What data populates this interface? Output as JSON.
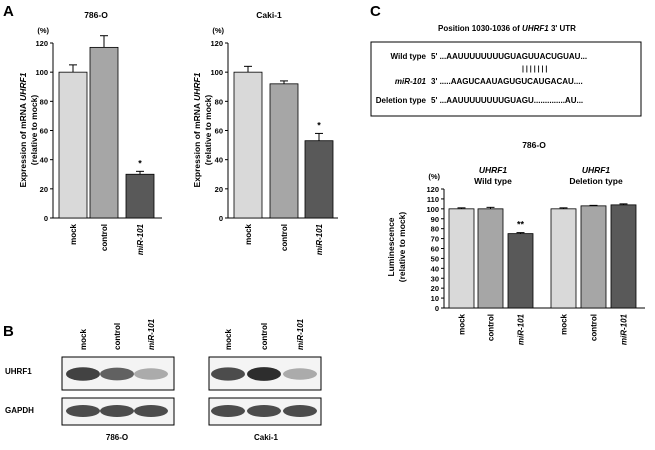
{
  "panel_labels": {
    "A": "A",
    "B": "B",
    "C": "C"
  },
  "chart_data": [
    {
      "type": "bar",
      "title": "786-O",
      "unit": "(%)",
      "ylabel_line1_prefix": "Expression of mRNA ",
      "ylabel_line1_gene": "UHRF1",
      "ylabel_line2": "(relative to mock)",
      "ylim": [
        0,
        120
      ],
      "yticks": [
        "0",
        "20",
        "40",
        "60",
        "80",
        "100",
        "120"
      ],
      "categories": [
        "mock",
        "control",
        "miR-101"
      ],
      "values": [
        100,
        117,
        30
      ],
      "errors": [
        5,
        8,
        2
      ],
      "significance": [
        "",
        "",
        "*"
      ],
      "colors": [
        "#d9d9d9",
        "#a6a6a6",
        "#595959"
      ]
    },
    {
      "type": "bar",
      "title": "Caki-1",
      "unit": "(%)",
      "ylabel_line1_prefix": "Expression of mRNA ",
      "ylabel_line1_gene": "UHRF1",
      "ylabel_line2": "(relative to mock)",
      "ylim": [
        0,
        120
      ],
      "yticks": [
        "0",
        "20",
        "40",
        "60",
        "80",
        "100",
        "120"
      ],
      "categories": [
        "mock",
        "control",
        "miR-101"
      ],
      "values": [
        100,
        92,
        53
      ],
      "errors": [
        4,
        2,
        5
      ],
      "significance": [
        "",
        "",
        "*"
      ],
      "colors": [
        "#d9d9d9",
        "#a6a6a6",
        "#595959"
      ]
    },
    {
      "type": "bar",
      "title": "786-O",
      "unit": "(%)",
      "ylabel_line1": "Luminescence",
      "ylabel_line2": "(relative to mock)",
      "ylim": [
        0,
        120
      ],
      "yticks": [
        "0",
        "10",
        "20",
        "30",
        "40",
        "50",
        "60",
        "70",
        "80",
        "90",
        "100",
        "110",
        "120"
      ],
      "groups": [
        {
          "gene": "UHRF1",
          "label": "Wild type"
        },
        {
          "gene": "UHRF1",
          "label": "Deletion type"
        }
      ],
      "categories": [
        "mock",
        "control",
        "miR-101",
        "mock",
        "control",
        "miR-101"
      ],
      "values": [
        100,
        100,
        75,
        100,
        103,
        104
      ],
      "errors": [
        1,
        1.5,
        1,
        1,
        0.5,
        1
      ],
      "significance": [
        "",
        "",
        "**",
        "",
        "",
        ""
      ],
      "colors": [
        "#d9d9d9",
        "#a6a6a6",
        "#595959",
        "#d9d9d9",
        "#a6a6a6",
        "#595959"
      ]
    }
  ],
  "sequence_box": {
    "title_prefix": "Position 1030-1036 of ",
    "title_gene": "UHRF1",
    "title_suffix": " 3' UTR",
    "rows": [
      {
        "label": "Wild type",
        "seq": "5' ...AAUUUUUUUUGUAGUUACUGUAU...",
        "italic": false
      },
      {
        "label": "miR-101",
        "seq": "3' .....AAGUCAAUAGUGUCAUGACAU....",
        "italic": true
      },
      {
        "label": "Deletion type",
        "seq": "5' ...AAUUUUUUUUGUAGU..............AU...",
        "italic": false
      }
    ],
    "pairing": "| | | | | | |"
  },
  "western": {
    "lanes": [
      "mock",
      "control",
      "miR-101"
    ],
    "row_labels": [
      "UHRF1",
      "GAPDH"
    ],
    "cell_lines": [
      "786-O",
      "Caki-1"
    ],
    "uhrf1_intensity": [
      [
        0.85,
        0.7,
        0.35
      ],
      [
        0.8,
        0.95,
        0.35
      ]
    ],
    "gapdh_intensity": [
      [
        0.8,
        0.8,
        0.8
      ],
      [
        0.8,
        0.8,
        0.8
      ]
    ]
  }
}
